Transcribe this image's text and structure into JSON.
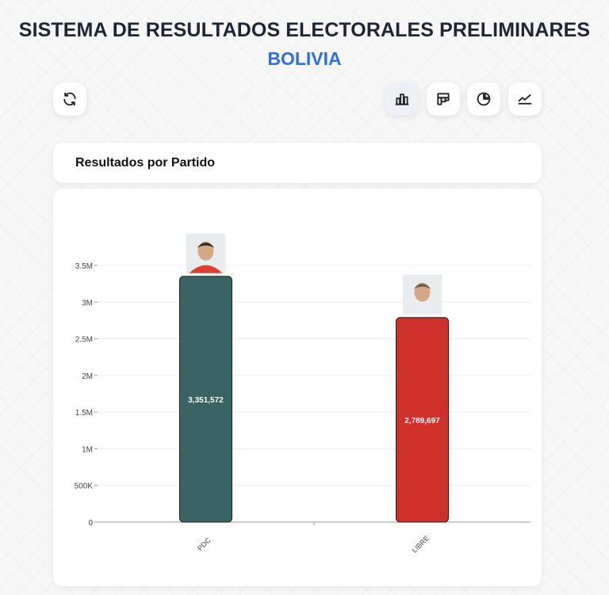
{
  "header": {
    "title": "SISTEMA DE RESULTADOS ELECTORALES PRELIMINARES",
    "subtitle": "BOLIVIA",
    "subtitle_color": "#2f6ee0"
  },
  "toolbar": {
    "refresh_icon": "refresh-icon",
    "views": [
      {
        "icon": "bar-chart-icon",
        "active": true
      },
      {
        "icon": "treemap-icon",
        "active": false
      },
      {
        "icon": "pie-chart-icon",
        "active": false
      },
      {
        "icon": "line-chart-icon",
        "active": false
      }
    ]
  },
  "card": {
    "title": "Resultados por Partido"
  },
  "chart_data": {
    "type": "bar",
    "categories": [
      "PDC",
      "LIBRE"
    ],
    "values": [
      3351572,
      2789697
    ],
    "value_labels": [
      "3,351,572",
      "2,789,697"
    ],
    "colors": [
      "#3a6363",
      "#d0302a"
    ],
    "ylim": [
      0,
      3500000
    ],
    "yticks": [
      0,
      500000,
      1000000,
      1500000,
      2000000,
      2500000,
      3000000,
      3500000
    ],
    "ytick_labels": [
      "0",
      "500K",
      "1M",
      "1.5M",
      "2M",
      "2.5M",
      "3M",
      "3.5M"
    ],
    "grid": true,
    "candidate_photos": true
  }
}
